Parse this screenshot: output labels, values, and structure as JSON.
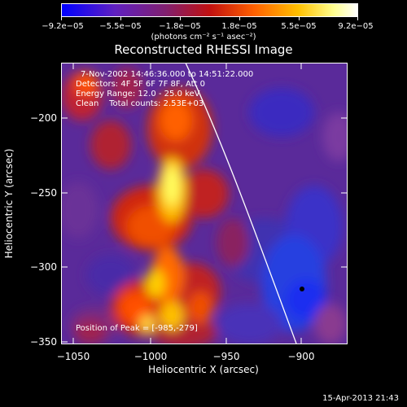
{
  "colorbar": {
    "ticks": [
      "−9.2e−05",
      "−5.5e−05",
      "−1.8e−05",
      "1.8e−05",
      "5.5e−05",
      "9.2e−05"
    ],
    "units": "(photons cm⁻² s⁻¹ asec⁻²)",
    "colors": [
      "#0000ff",
      "#7030c0",
      "#a02050",
      "#e03000",
      "#ff9000",
      "#ffff80",
      "#ffffff"
    ]
  },
  "title": "Reconstructed RHESSI Image",
  "info": {
    "time": "7-Nov-2002 14:46:36.000 to 14:51:22.000",
    "detectors": "Detectors: 4F 5F 6F 7F 8F, Att 0",
    "energy": "Energy Range: 12.0 - 25.0 keV",
    "clean": "Clean    Total counts: 2.53E+03",
    "peak": "Position of Peak = [-985,-279]"
  },
  "axes": {
    "xlabel": "Heliocentric X (arcsec)",
    "ylabel": "Heliocentric Y (arcsec)",
    "xticks": [
      "−1050",
      "−1000",
      "−950",
      "−900"
    ],
    "yticks": [
      "−200",
      "−250",
      "−300",
      "−350"
    ]
  },
  "footer": {
    "timestamp": "15-Apr-2013 21:43"
  }
}
